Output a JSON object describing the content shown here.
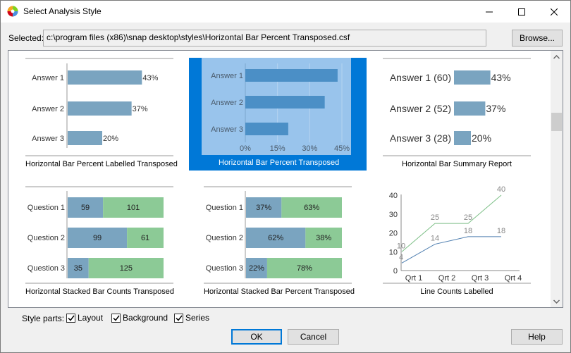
{
  "window": {
    "title": "Select Analysis Style"
  },
  "selected": {
    "label": "Selected:",
    "path": "c:\\program files (x86)\\snap desktop\\styles\\Horizontal Bar Percent Transposed.csf",
    "browse_label": "Browse..."
  },
  "tiles": [
    {
      "caption": "Horizontal Bar Percent Labelled Transposed",
      "chart_data": {
        "type": "bar",
        "orientation": "horizontal",
        "categories": [
          "Answer 1",
          "Answer 2",
          "Answer 3"
        ],
        "values": [
          43,
          37,
          20
        ],
        "data_labels": [
          "43%",
          "37%",
          "20%"
        ],
        "color": "#7aa4c0"
      }
    },
    {
      "caption": "Horizontal Bar Percent Transposed",
      "selected": true,
      "chart_data": {
        "type": "bar",
        "orientation": "horizontal",
        "categories": [
          "Answer 1",
          "Answer 2",
          "Answer 3"
        ],
        "values": [
          43,
          37,
          20
        ],
        "xticks": [
          "0%",
          "15%",
          "30%",
          "45%"
        ],
        "xlim": [
          0,
          45
        ],
        "color": "#4b8fc6"
      }
    },
    {
      "caption": "Horizontal Bar Summary Report",
      "chart_data": {
        "type": "bar",
        "orientation": "horizontal",
        "categories": [
          "Answer 1 (60)",
          "Answer 2 (52)",
          "Answer 3 (28)"
        ],
        "values": [
          43,
          37,
          20
        ],
        "data_labels": [
          "43%",
          "37%",
          "20%"
        ],
        "color": "#7aa4c0"
      }
    },
    {
      "caption": "Horizontal Stacked Bar Counts Transposed",
      "chart_data": {
        "type": "bar",
        "orientation": "horizontal",
        "stacked": true,
        "categories": [
          "Question 1",
          "Question 2",
          "Question 3"
        ],
        "series": [
          {
            "values": [
              59,
              99,
              35
            ],
            "color": "#7aa4c0"
          },
          {
            "values": [
              101,
              61,
              125
            ],
            "color": "#8cca96"
          }
        ],
        "data_labels": [
          [
            "59",
            "101"
          ],
          [
            "99",
            "61"
          ],
          [
            "35",
            "125"
          ]
        ]
      }
    },
    {
      "caption": "Horizontal Stacked Bar Percent Transposed",
      "chart_data": {
        "type": "bar",
        "orientation": "horizontal",
        "stacked": true,
        "categories": [
          "Question 1",
          "Question 2",
          "Question 3"
        ],
        "series": [
          {
            "values": [
              37,
              62,
              22
            ],
            "color": "#7aa4c0"
          },
          {
            "values": [
              63,
              38,
              78
            ],
            "color": "#8cca96"
          }
        ],
        "data_labels": [
          [
            "37%",
            "63%"
          ],
          [
            "62%",
            "38%"
          ],
          [
            "22%",
            "78%"
          ]
        ]
      }
    },
    {
      "caption": "Line Counts Labelled",
      "chart_data": {
        "type": "line",
        "categories": [
          "Qrt 1",
          "Qrt 2",
          "Qrt 3",
          "Qrt 4"
        ],
        "ylim": [
          0,
          40
        ],
        "yticks": [
          "0",
          "10",
          "20",
          "30",
          "40"
        ],
        "series": [
          {
            "values": [
              10,
              25,
              25,
              40
            ],
            "color": "#7cbf86"
          },
          {
            "values": [
              4,
              14,
              18,
              18
            ],
            "color": "#4f7fb0"
          }
        ]
      }
    }
  ],
  "style_parts": {
    "label": "Style parts:",
    "layout": "Layout",
    "background": "Background",
    "series": "Series"
  },
  "buttons": {
    "ok": "OK",
    "cancel": "Cancel",
    "help": "Help"
  }
}
